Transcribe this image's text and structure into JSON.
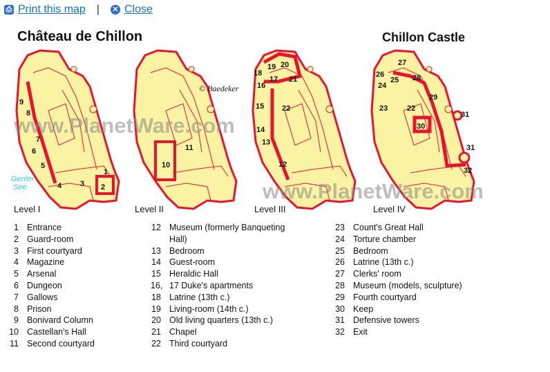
{
  "toolbar": {
    "print_label": "Print this map",
    "separator": "|",
    "close_label": "Close",
    "print_icon": "printer-icon",
    "close_icon": "close-x-icon"
  },
  "map": {
    "title_left": "Château de Chillon",
    "title_right": "Chillon Castle",
    "copyright": "© Baedeker",
    "watermark": "www.PlanetWare.com",
    "lake_label_1": "Genfer",
    "lake_label_2": "See",
    "levels": [
      "Level I",
      "Level II",
      "Level III",
      "Level IV"
    ],
    "colors": {
      "wall": "#e8132e",
      "floor": "#fbf3a4",
      "lake": "#3cc4f0"
    }
  },
  "legend": {
    "col1": [
      {
        "n": "1",
        "t": "Entrance"
      },
      {
        "n": "2",
        "t": "Guard-room"
      },
      {
        "n": "3",
        "t": "First courtyard"
      },
      {
        "n": "4",
        "t": "Magazine"
      },
      {
        "n": "5",
        "t": "Arsenal"
      },
      {
        "n": "6",
        "t": "Dungeon"
      },
      {
        "n": "7",
        "t": "Gallows"
      },
      {
        "n": "8",
        "t": "Prison"
      },
      {
        "n": "9",
        "t": "Bonivard Column"
      },
      {
        "n": "10",
        "t": "Castellan's Hall"
      },
      {
        "n": "11",
        "t": "Second courtyard"
      }
    ],
    "col2": [
      {
        "n": "12",
        "t": "Museum (formerly Banqueting"
      },
      {
        "n": "",
        "t": "Hall)"
      },
      {
        "n": "13",
        "t": "Bedroom"
      },
      {
        "n": "14",
        "t": "Guest-room"
      },
      {
        "n": "15",
        "t": "Heraldic Hall"
      },
      {
        "n": "16,",
        "t": "17 Duke's apartments"
      },
      {
        "n": "18",
        "t": "Latrine (13th c.)"
      },
      {
        "n": "19",
        "t": "Living-room (14th c.)"
      },
      {
        "n": "20",
        "t": "Old living quarters (13th c.)"
      },
      {
        "n": "21",
        "t": "Chapel"
      },
      {
        "n": "22",
        "t": "Third courtyard"
      }
    ],
    "col3": [
      {
        "n": "23",
        "t": "Count's Great Hall"
      },
      {
        "n": "24",
        "t": "Torture chamber"
      },
      {
        "n": "25",
        "t": "Bedroom"
      },
      {
        "n": "26",
        "t": "Latrine (13th c.)"
      },
      {
        "n": "27",
        "t": "Clerks' room"
      },
      {
        "n": "28",
        "t": "Museum (models, sculpture)"
      },
      {
        "n": "29",
        "t": "Fourth courtyard"
      },
      {
        "n": "30",
        "t": "Keep"
      },
      {
        "n": "31",
        "t": "Defensive towers"
      },
      {
        "n": "32",
        "t": "Exit"
      }
    ]
  },
  "plan_labels": {
    "level1": [
      "9",
      "8",
      "7",
      "6",
      "5",
      "4",
      "3",
      "2",
      "1"
    ],
    "level2": [
      "10",
      "11"
    ],
    "level3": [
      "20",
      "19",
      "18",
      "17",
      "21",
      "16",
      "15",
      "22",
      "14",
      "13",
      "12"
    ],
    "level4": [
      "27",
      "26",
      "25",
      "28",
      "24",
      "29",
      "23",
      "22",
      "31",
      "30",
      "31",
      "32"
    ]
  }
}
